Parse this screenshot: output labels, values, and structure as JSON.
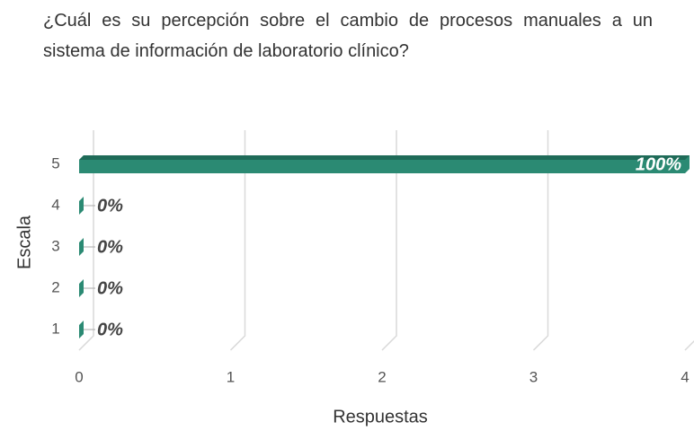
{
  "chart_data": {
    "type": "bar",
    "orientation": "horizontal",
    "title": "¿Cuál es su percepción sobre el cambio de procesos manuales a un sistema de información de laboratorio clínico?",
    "x_label": "Respuestas",
    "y_label": "Escala",
    "categories": [
      "1",
      "2",
      "3",
      "4",
      "5"
    ],
    "values": [
      0,
      0,
      0,
      0,
      4
    ],
    "value_labels": [
      "0%",
      "0%",
      "0%",
      "0%",
      "100%"
    ],
    "color": "#2b8a73",
    "xlim": [
      0,
      4
    ],
    "xticks": [
      0,
      1,
      2,
      3,
      4
    ],
    "grid": true
  }
}
